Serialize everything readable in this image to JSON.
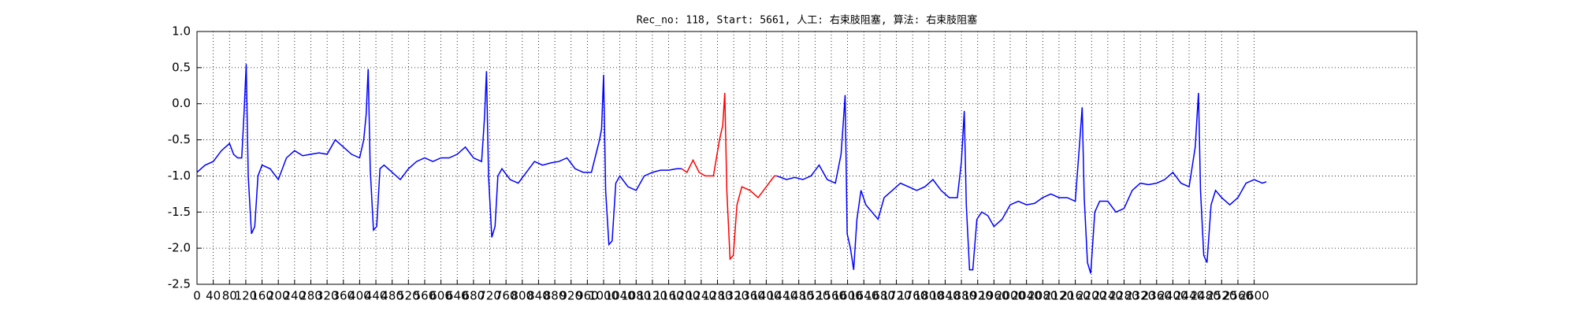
{
  "chart_data": {
    "type": "line",
    "title": "Rec_no: 118, Start: 5661, 人工: 右束肢阻塞, 算法: 右束肢阻塞",
    "xlim": [
      0,
      3000
    ],
    "ylim": [
      -2.5,
      1.0
    ],
    "xticks": [
      0,
      40,
      80,
      120,
      160,
      200,
      240,
      280,
      320,
      360,
      400,
      440,
      480,
      520,
      560,
      600,
      640,
      680,
      720,
      760,
      800,
      840,
      880,
      920,
      960,
      1000,
      1040,
      1080,
      1120,
      1160,
      1200,
      1240,
      1280,
      1320,
      1360,
      1400,
      1440,
      1480,
      1520,
      1560,
      1600,
      1640,
      1680,
      1720,
      1760,
      1800,
      1840,
      1880,
      1920,
      1960,
      2000,
      2040,
      2080,
      2120,
      2160,
      2200,
      2240,
      2280,
      2320,
      2360,
      2400,
      2440,
      2480,
      2520,
      2560,
      2600
    ],
    "yticks": [
      {
        "value": -2.5,
        "label": "-2.5"
      },
      {
        "value": -2.0,
        "label": "-2.0"
      },
      -1.5,
      {
        "value": -1.0,
        "label": "-1.0"
      },
      -0.5,
      {
        "value": 0.0,
        "label": "0.0"
      },
      0.5,
      {
        "value": 1.0,
        "label": "1.0"
      }
    ],
    "grid": true,
    "series": [
      {
        "color": "#0000ff",
        "x": [
          0,
          20,
          40,
          60,
          80,
          90,
          100,
          110,
          116,
          121,
          126,
          134,
          142,
          150,
          160,
          180,
          200,
          220,
          240,
          260,
          280,
          300,
          320,
          340,
          360,
          380,
          400,
          410,
          416,
          421,
          426,
          434,
          442,
          450,
          460,
          480,
          500,
          520,
          540,
          560,
          580,
          600,
          620,
          640,
          660,
          680,
          700,
          707,
          712,
          717,
          725,
          733,
          740,
          750,
          770,
          790,
          810,
          830,
          850,
          870,
          890,
          910,
          930,
          950,
          970,
          990,
          995,
          1000,
          1005,
          1013,
          1021,
          1030,
          1040,
          1060,
          1080,
          1100,
          1120,
          1140,
          1160,
          1180,
          1192
        ],
        "values": [
          -0.95,
          -0.85,
          -0.8,
          -0.65,
          -0.55,
          -0.7,
          -0.75,
          -0.75,
          -0.1,
          0.55,
          -1.0,
          -1.8,
          -1.7,
          -1.0,
          -0.85,
          -0.9,
          -1.05,
          -0.75,
          -0.65,
          -0.72,
          -0.7,
          -0.68,
          -0.7,
          -0.5,
          -0.6,
          -0.7,
          -0.75,
          -0.5,
          -0.15,
          0.48,
          -0.9,
          -1.75,
          -1.7,
          -0.9,
          -0.85,
          -0.95,
          -1.05,
          -0.9,
          -0.8,
          -0.75,
          -0.8,
          -0.75,
          -0.75,
          -0.7,
          -0.6,
          -0.75,
          -0.8,
          -0.2,
          0.45,
          -1.0,
          -1.85,
          -1.7,
          -1.0,
          -0.9,
          -1.05,
          -1.1,
          -0.95,
          -0.8,
          -0.85,
          -0.82,
          -0.8,
          -0.75,
          -0.9,
          -0.95,
          -0.95,
          -0.5,
          -0.35,
          0.4,
          -1.2,
          -1.95,
          -1.9,
          -1.1,
          -1.0,
          -1.15,
          -1.2,
          -1.0,
          -0.95,
          -0.92,
          -0.92,
          -0.9,
          -0.9
        ]
      },
      {
        "color": "#ff0000",
        "x": [
          1192,
          1205,
          1220,
          1235,
          1250,
          1270,
          1285,
          1293,
          1298,
          1303,
          1311,
          1319,
          1328,
          1340,
          1360,
          1380,
          1400,
          1420,
          1426
        ],
        "values": [
          -0.9,
          -0.95,
          -0.78,
          -0.95,
          -1.0,
          -1.0,
          -0.5,
          -0.3,
          0.15,
          -1.2,
          -2.15,
          -2.1,
          -1.4,
          -1.15,
          -1.2,
          -1.3,
          -1.15,
          -1.0,
          -1.0
        ]
      },
      {
        "color": "#0000ff",
        "x": [
          1426,
          1450,
          1470,
          1490,
          1510,
          1530,
          1550,
          1570,
          1584,
          1589,
          1594,
          1599,
          1607,
          1615,
          1623,
          1633,
          1645,
          1660,
          1675,
          1690,
          1710,
          1730,
          1750,
          1770,
          1790,
          1810,
          1830,
          1850,
          1870,
          1880,
          1887,
          1892,
          1900,
          1908,
          1918,
          1930,
          1945,
          1960,
          1980,
          2000,
          2020,
          2040,
          2060,
          2080,
          2100,
          2120,
          2140,
          2160,
          2170,
          2177,
          2182,
          2190,
          2198,
          2208,
          2220,
          2240,
          2260,
          2280,
          2300,
          2320,
          2340,
          2360,
          2380,
          2400,
          2420,
          2440,
          2455,
          2463,
          2468,
          2476,
          2484,
          2494,
          2505,
          2520,
          2540,
          2560,
          2580,
          2600,
          2620,
          2630
        ],
        "values": [
          -1.0,
          -1.05,
          -1.02,
          -1.05,
          -1.0,
          -0.85,
          -1.05,
          -1.1,
          -0.7,
          -0.3,
          0.12,
          -1.8,
          -2.0,
          -2.3,
          -1.6,
          -1.2,
          -1.4,
          -1.5,
          -1.6,
          -1.3,
          -1.2,
          -1.1,
          -1.15,
          -1.2,
          -1.15,
          -1.05,
          -1.2,
          -1.3,
          -1.3,
          -0.8,
          -0.1,
          -1.4,
          -2.3,
          -2.3,
          -1.6,
          -1.5,
          -1.55,
          -1.7,
          -1.6,
          -1.4,
          -1.35,
          -1.4,
          -1.38,
          -1.3,
          -1.25,
          -1.3,
          -1.3,
          -1.35,
          -0.6,
          -0.05,
          -1.3,
          -2.2,
          -2.35,
          -1.5,
          -1.35,
          -1.35,
          -1.5,
          -1.45,
          -1.2,
          -1.1,
          -1.12,
          -1.1,
          -1.05,
          -0.95,
          -1.1,
          -1.15,
          -0.6,
          0.15,
          -1.2,
          -2.1,
          -2.2,
          -1.4,
          -1.2,
          -1.3,
          -1.4,
          -1.3,
          -1.1,
          -1.05,
          -1.1,
          -1.08
        ]
      }
    ]
  }
}
